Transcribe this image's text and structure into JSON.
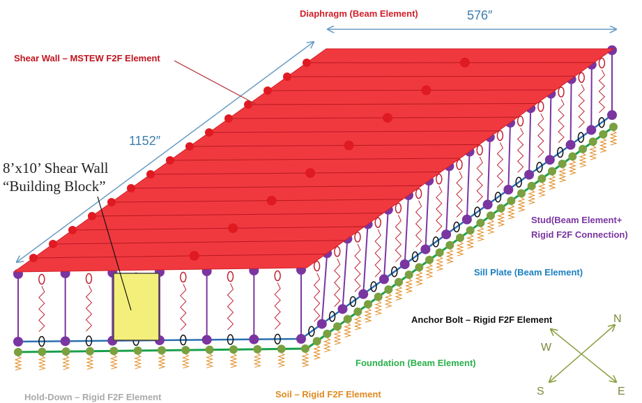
{
  "labels": {
    "diaphragm": "Diaphragm (Beam Element)",
    "shear_wall": "Shear Wall – MSTEW F2F Element",
    "building_block": [
      "8’x10’ Shear Wall",
      "“Building Block”"
    ],
    "stud": [
      "Stud(Beam Element+",
      "Rigid F2F Connection)"
    ],
    "sill_plate": "Sill Plate (Beam Element)",
    "anchor_bolt": "Anchor Bolt – Rigid F2F Element",
    "foundation": "Foundation (Beam Element)",
    "soil": "Soil – Rigid F2F Element",
    "hold_down": "Hold-Down – Rigid F2F Element"
  },
  "dimensions": {
    "width": "576″",
    "length": "1152″"
  },
  "compass": {
    "n": "N",
    "w": "W",
    "s": "S",
    "e": "E"
  }
}
